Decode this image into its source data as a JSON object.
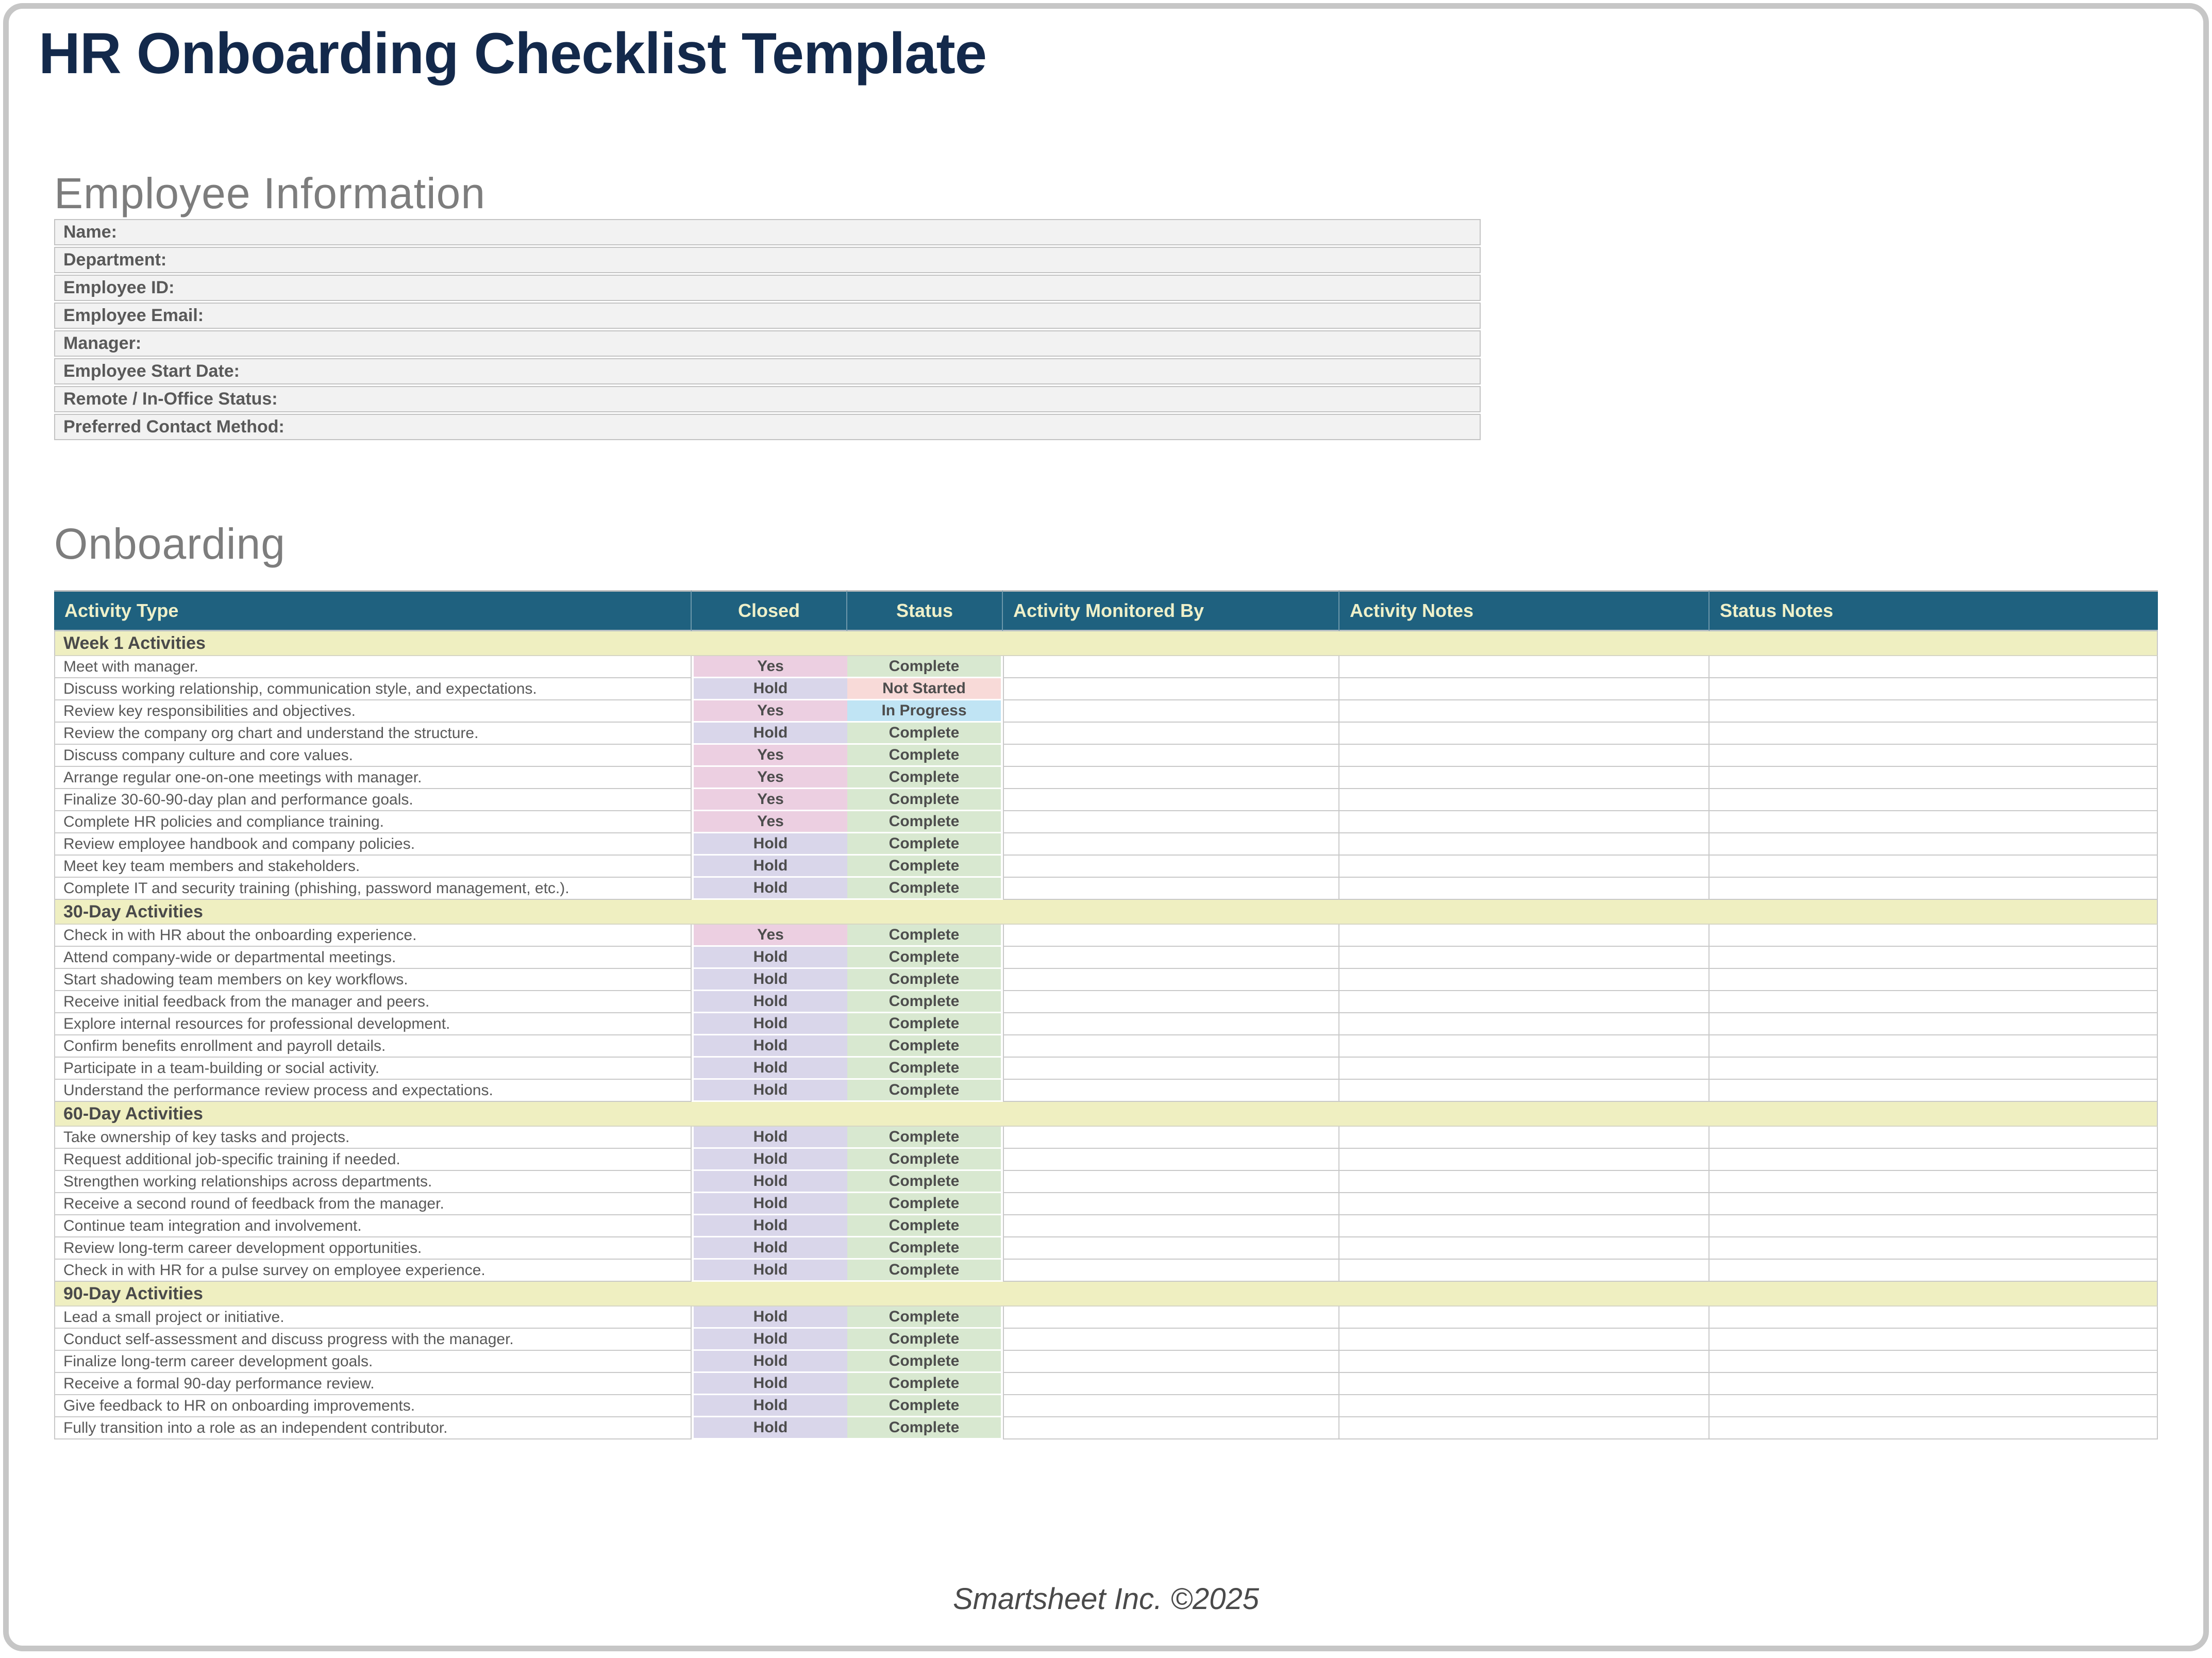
{
  "page": {
    "title": "HR Onboarding Checklist Template",
    "footer": "Smartsheet Inc. ©2025"
  },
  "employee_info": {
    "heading": "Employee Information",
    "fields": [
      {
        "label": "Name:",
        "value": ""
      },
      {
        "label": "Department:",
        "value": ""
      },
      {
        "label": "Employee ID:",
        "value": ""
      },
      {
        "label": "Employee Email:",
        "value": ""
      },
      {
        "label": "Manager:",
        "value": ""
      },
      {
        "label": "Employee Start Date:",
        "value": ""
      },
      {
        "label": "Remote / In-Office Status:",
        "value": ""
      },
      {
        "label": "Preferred Contact Method:",
        "value": ""
      }
    ]
  },
  "onboarding": {
    "heading": "Onboarding",
    "columns": [
      "Activity Type",
      "Closed",
      "Status",
      "Activity Monitored By",
      "Activity Notes",
      "Status Notes"
    ],
    "sections": [
      {
        "title": "Week 1 Activities",
        "rows": [
          {
            "activity": "Meet with manager.",
            "closed": "Yes",
            "status": "Complete",
            "monitored_by": "",
            "activity_notes": "",
            "status_notes": ""
          },
          {
            "activity": "Discuss working relationship, communication style, and expectations.",
            "closed": "Hold",
            "status": "Not Started",
            "monitored_by": "",
            "activity_notes": "",
            "status_notes": ""
          },
          {
            "activity": "Review key responsibilities and objectives.",
            "closed": "Yes",
            "status": "In Progress",
            "monitored_by": "",
            "activity_notes": "",
            "status_notes": ""
          },
          {
            "activity": "Review the company org chart and understand the structure.",
            "closed": "Hold",
            "status": "Complete",
            "monitored_by": "",
            "activity_notes": "",
            "status_notes": ""
          },
          {
            "activity": "Discuss company culture and core values.",
            "closed": "Yes",
            "status": "Complete",
            "monitored_by": "",
            "activity_notes": "",
            "status_notes": ""
          },
          {
            "activity": "Arrange regular one-on-one meetings with manager.",
            "closed": "Yes",
            "status": "Complete",
            "monitored_by": "",
            "activity_notes": "",
            "status_notes": ""
          },
          {
            "activity": "Finalize 30-60-90-day plan and performance goals.",
            "closed": "Yes",
            "status": "Complete",
            "monitored_by": "",
            "activity_notes": "",
            "status_notes": ""
          },
          {
            "activity": "Complete HR policies and compliance training.",
            "closed": "Yes",
            "status": "Complete",
            "monitored_by": "",
            "activity_notes": "",
            "status_notes": ""
          },
          {
            "activity": "Review employee handbook and company policies.",
            "closed": "Hold",
            "status": "Complete",
            "monitored_by": "",
            "activity_notes": "",
            "status_notes": ""
          },
          {
            "activity": "Meet key team members and stakeholders.",
            "closed": "Hold",
            "status": "Complete",
            "monitored_by": "",
            "activity_notes": "",
            "status_notes": ""
          },
          {
            "activity": "Complete IT and security training (phishing, password management, etc.).",
            "closed": "Hold",
            "status": "Complete",
            "monitored_by": "",
            "activity_notes": "",
            "status_notes": ""
          }
        ]
      },
      {
        "title": "30-Day Activities",
        "rows": [
          {
            "activity": "Check in with HR about the onboarding experience.",
            "closed": "Yes",
            "status": "Complete",
            "monitored_by": "",
            "activity_notes": "",
            "status_notes": ""
          },
          {
            "activity": "Attend company-wide or departmental meetings.",
            "closed": "Hold",
            "status": "Complete",
            "monitored_by": "",
            "activity_notes": "",
            "status_notes": ""
          },
          {
            "activity": "Start shadowing team members on key workflows.",
            "closed": "Hold",
            "status": "Complete",
            "monitored_by": "",
            "activity_notes": "",
            "status_notes": ""
          },
          {
            "activity": "Receive initial feedback from the manager and peers.",
            "closed": "Hold",
            "status": "Complete",
            "monitored_by": "",
            "activity_notes": "",
            "status_notes": ""
          },
          {
            "activity": "Explore internal resources for professional development.",
            "closed": "Hold",
            "status": "Complete",
            "monitored_by": "",
            "activity_notes": "",
            "status_notes": ""
          },
          {
            "activity": "Confirm benefits enrollment and payroll details.",
            "closed": "Hold",
            "status": "Complete",
            "monitored_by": "",
            "activity_notes": "",
            "status_notes": ""
          },
          {
            "activity": "Participate in a team-building or social activity.",
            "closed": "Hold",
            "status": "Complete",
            "monitored_by": "",
            "activity_notes": "",
            "status_notes": ""
          },
          {
            "activity": "Understand the performance review process and expectations.",
            "closed": "Hold",
            "status": "Complete",
            "monitored_by": "",
            "activity_notes": "",
            "status_notes": ""
          }
        ]
      },
      {
        "title": "60-Day Activities",
        "rows": [
          {
            "activity": "Take ownership of key tasks and projects.",
            "closed": "Hold",
            "status": "Complete",
            "monitored_by": "",
            "activity_notes": "",
            "status_notes": ""
          },
          {
            "activity": "Request additional job-specific training if needed.",
            "closed": "Hold",
            "status": "Complete",
            "monitored_by": "",
            "activity_notes": "",
            "status_notes": ""
          },
          {
            "activity": "Strengthen working relationships across departments.",
            "closed": "Hold",
            "status": "Complete",
            "monitored_by": "",
            "activity_notes": "",
            "status_notes": ""
          },
          {
            "activity": "Receive a second round of feedback from the manager.",
            "closed": "Hold",
            "status": "Complete",
            "monitored_by": "",
            "activity_notes": "",
            "status_notes": ""
          },
          {
            "activity": "Continue team integration and involvement.",
            "closed": "Hold",
            "status": "Complete",
            "monitored_by": "",
            "activity_notes": "",
            "status_notes": ""
          },
          {
            "activity": "Review long-term career development opportunities.",
            "closed": "Hold",
            "status": "Complete",
            "monitored_by": "",
            "activity_notes": "",
            "status_notes": ""
          },
          {
            "activity": "Check in with HR for a pulse survey on employee experience.",
            "closed": "Hold",
            "status": "Complete",
            "monitored_by": "",
            "activity_notes": "",
            "status_notes": ""
          }
        ]
      },
      {
        "title": "90-Day Activities",
        "rows": [
          {
            "activity": "Lead a small project or initiative.",
            "closed": "Hold",
            "status": "Complete",
            "monitored_by": "",
            "activity_notes": "",
            "status_notes": ""
          },
          {
            "activity": "Conduct self-assessment and discuss progress with the manager.",
            "closed": "Hold",
            "status": "Complete",
            "monitored_by": "",
            "activity_notes": "",
            "status_notes": ""
          },
          {
            "activity": "Finalize long-term career development goals.",
            "closed": "Hold",
            "status": "Complete",
            "monitored_by": "",
            "activity_notes": "",
            "status_notes": ""
          },
          {
            "activity": "Receive a formal 90-day performance review.",
            "closed": "Hold",
            "status": "Complete",
            "monitored_by": "",
            "activity_notes": "",
            "status_notes": ""
          },
          {
            "activity": "Give feedback to HR on onboarding improvements.",
            "closed": "Hold",
            "status": "Complete",
            "monitored_by": "",
            "activity_notes": "",
            "status_notes": ""
          },
          {
            "activity": "Fully transition into a role as an independent contributor.",
            "closed": "Hold",
            "status": "Complete",
            "monitored_by": "",
            "activity_notes": "",
            "status_notes": ""
          }
        ]
      }
    ]
  },
  "colors": {
    "title_navy": "#13294B",
    "heading_gray": "#7d7d7d",
    "header_teal": "#1F617F",
    "header_text": "#EEF0C9",
    "section_row_bg": "#EFEFC1",
    "closed_yes_bg": "#ECCFE1",
    "closed_hold_bg": "#D9D6EA",
    "status_complete_bg": "#D8E8D0",
    "status_not_started_bg": "#F8DAD8",
    "status_in_progress_bg": "#C0E4F4",
    "employee_row_bg": "#F2F2F2"
  }
}
